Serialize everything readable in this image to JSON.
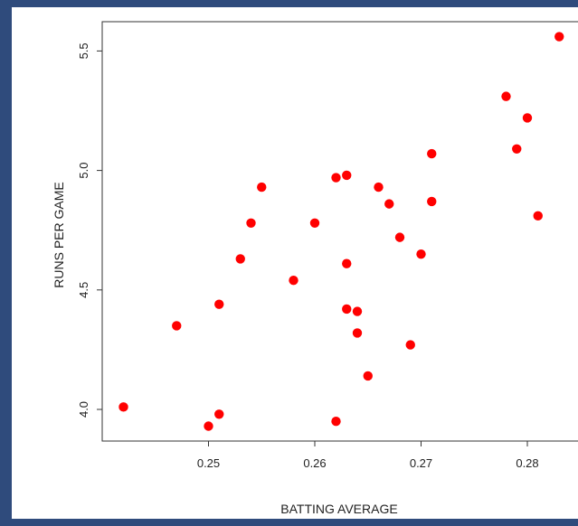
{
  "chart_data": {
    "type": "scatter",
    "title": "",
    "xlabel": "BATTING AVERAGE",
    "ylabel": "RUNS PER GAME",
    "xlim": [
      0.24,
      0.285
    ],
    "ylim": [
      3.87,
      5.65
    ],
    "x_ticks": [
      0.25,
      0.26,
      0.27,
      0.28
    ],
    "x_tick_labels": [
      "0.25",
      "0.26",
      "0.27",
      "0.28"
    ],
    "y_ticks": [
      4.0,
      4.5,
      5.0,
      5.5
    ],
    "y_tick_labels": [
      "4.0",
      "4.5",
      "5.0",
      "5.5"
    ],
    "grid": false,
    "marker_color": "#ff0000",
    "series": [
      {
        "points": [
          [
            0.242,
            4.01
          ],
          [
            0.247,
            4.35
          ],
          [
            0.25,
            3.93
          ],
          [
            0.251,
            3.98
          ],
          [
            0.251,
            4.44
          ],
          [
            0.253,
            4.63
          ],
          [
            0.254,
            4.78
          ],
          [
            0.255,
            4.93
          ],
          [
            0.258,
            4.54
          ],
          [
            0.26,
            4.78
          ],
          [
            0.262,
            4.97
          ],
          [
            0.262,
            3.95
          ],
          [
            0.263,
            4.98
          ],
          [
            0.263,
            4.61
          ],
          [
            0.263,
            4.42
          ],
          [
            0.264,
            4.41
          ],
          [
            0.264,
            4.32
          ],
          [
            0.265,
            4.14
          ],
          [
            0.266,
            4.93
          ],
          [
            0.267,
            4.86
          ],
          [
            0.268,
            4.72
          ],
          [
            0.269,
            4.27
          ],
          [
            0.27,
            4.65
          ],
          [
            0.271,
            5.07
          ],
          [
            0.271,
            4.87
          ],
          [
            0.278,
            5.31
          ],
          [
            0.279,
            5.09
          ],
          [
            0.28,
            5.22
          ],
          [
            0.281,
            4.81
          ],
          [
            0.283,
            5.56
          ]
        ]
      }
    ]
  }
}
